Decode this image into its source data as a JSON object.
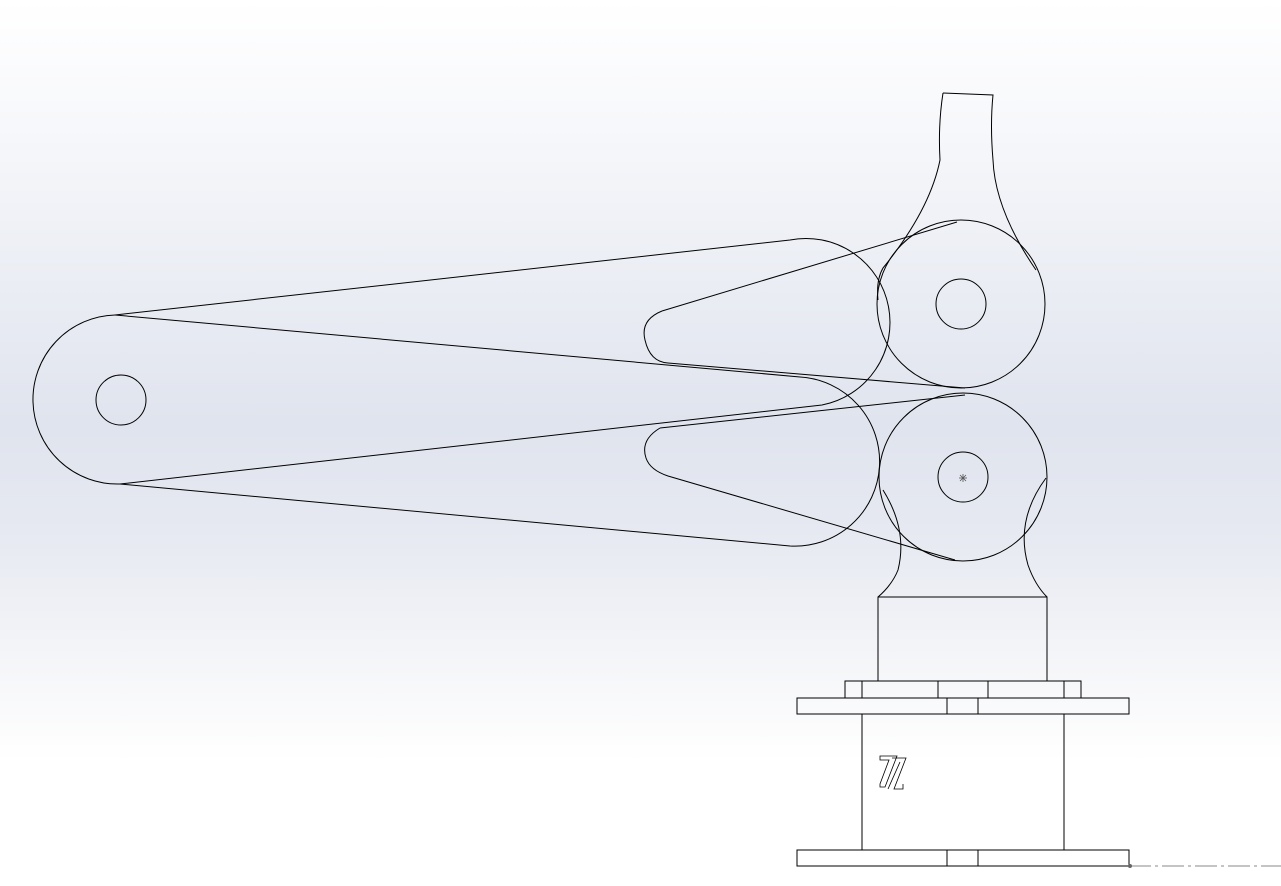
{
  "view": {
    "background_top": "#ffffff",
    "background_mid": "#e0e4ee",
    "line_color": "#000000"
  },
  "model": {
    "parts": [
      "base-plate",
      "base-housing",
      "flange",
      "column",
      "lower-yoke",
      "lower-link",
      "upper-link",
      "upper-yoke",
      "top-post"
    ],
    "icons": [
      "triad-logo-icon",
      "center-mark-icon"
    ]
  }
}
